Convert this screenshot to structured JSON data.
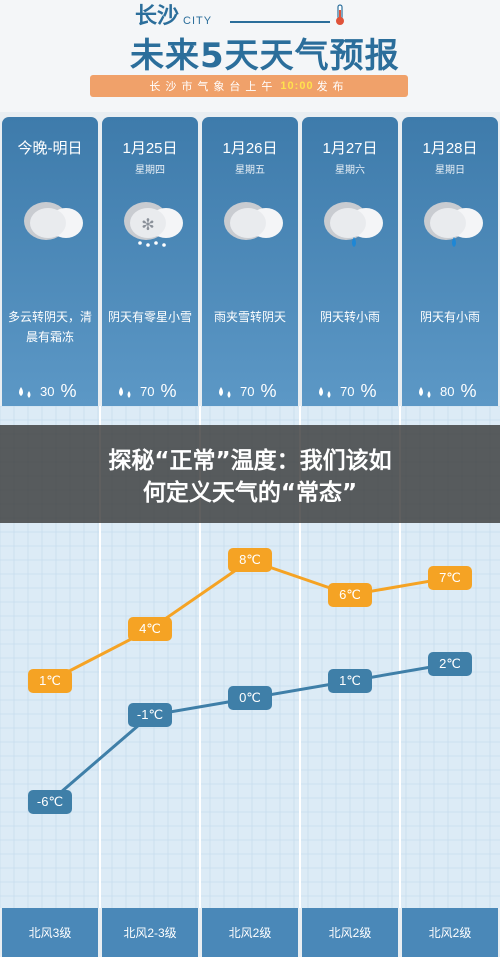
{
  "header": {
    "city": "长沙",
    "city_en": "CITY",
    "title": "未来5天天气预报",
    "publish_prefix": "长沙市气象台上午",
    "publish_time": "10:00",
    "publish_suffix": "发布"
  },
  "days": [
    {
      "date": "今晚-明日",
      "weekday": "",
      "icon": "cloudy-icon",
      "desc": "多云转阴天，清晨有霜冻",
      "rain_chance": "30",
      "rain_unit": "%",
      "wind": "北风3级"
    },
    {
      "date": "1月25日",
      "weekday": "星期四",
      "icon": "snow-cloud-icon",
      "desc": "阴天有零星小雪",
      "rain_chance": "70",
      "rain_unit": "%",
      "wind": "北风2-3级"
    },
    {
      "date": "1月26日",
      "weekday": "星期五",
      "icon": "cloudy-icon",
      "desc": "雨夹雪转阴天",
      "rain_chance": "70",
      "rain_unit": "%",
      "wind": "北风2级"
    },
    {
      "date": "1月27日",
      "weekday": "星期六",
      "icon": "rain-cloud-icon",
      "desc": "阴天转小雨",
      "rain_chance": "70",
      "rain_unit": "%",
      "wind": "北风2级"
    },
    {
      "date": "1月28日",
      "weekday": "星期日",
      "icon": "rain-cloud-icon",
      "desc": "阴天有小雨",
      "rain_chance": "80",
      "rain_unit": "%",
      "wind": "北风2级"
    }
  ],
  "banner": {
    "line1": "探秘“正常”温度：我们该如",
    "line2": "何定义天气的“常态”"
  },
  "chart_data": {
    "type": "line",
    "categories": [
      "今晚-明日",
      "1月25日",
      "1月26日",
      "1月27日",
      "1月28日"
    ],
    "series": [
      {
        "values": [
          1,
          4,
          8,
          6,
          7
        ],
        "labels": [
          "1℃",
          "4℃",
          "8℃",
          "6℃",
          "7℃"
        ],
        "color": "#f5a324"
      },
      {
        "values": [
          -6,
          -1,
          0,
          1,
          2
        ],
        "labels": [
          "-6℃",
          "-1℃",
          "0℃",
          "1℃",
          "2℃"
        ],
        "color": "#3f7fa8"
      }
    ],
    "ylim": [
      -8,
      10
    ],
    "grid": true
  },
  "colors": {
    "brand_blue": "#2b6e9b",
    "column_blue": "#3e7bab",
    "high_orange": "#f5a324",
    "low_blue": "#3f7fa8",
    "publish_bar": "#f0a16a"
  }
}
